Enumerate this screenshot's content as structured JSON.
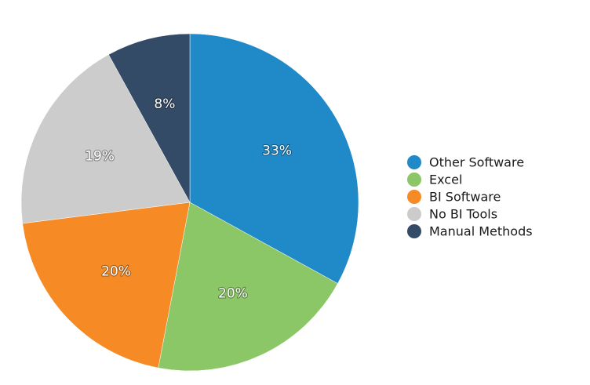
{
  "chart_data": {
    "type": "pie",
    "title": "",
    "slices": [
      {
        "label": "Other Software",
        "value": 33,
        "display": "33%",
        "color": "#2089c8"
      },
      {
        "label": "Excel",
        "value": 20,
        "display": "20%",
        "color": "#8bc766"
      },
      {
        "label": "BI Software",
        "value": 20,
        "display": "20%",
        "color": "#f68a24"
      },
      {
        "label": "No BI Tools",
        "value": 19,
        "display": "19%",
        "color": "#cccccc"
      },
      {
        "label": "Manual Methods",
        "value": 8,
        "display": "8%",
        "color": "#334b66"
      }
    ],
    "start_angle_deg": 0,
    "direction": "clockwise",
    "legend_position": "right"
  }
}
